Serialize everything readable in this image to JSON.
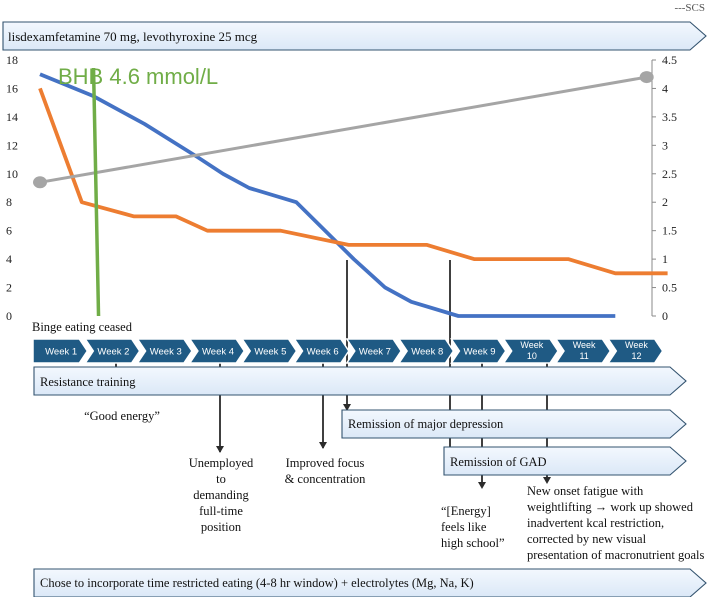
{
  "corner_label": "---SCS",
  "medication_label": "lisdexamfetamine 70 mg, levothyroxine 25 mcg",
  "bhb_label": "BHB 4.6 mmol/L",
  "binge_label": "Binge eating ceased",
  "weeks": [
    "Week 1",
    "Week 2",
    "Week 3",
    "Week 4",
    "Week 5",
    "Week 6",
    "Week 7",
    "Week 8",
    "Week 9",
    "Week 10",
    "Week 11",
    "Week 12"
  ],
  "bands": {
    "resistance": "Resistance training",
    "depression": "Remission of major depression",
    "gad": "Remission of GAD",
    "bottom": "Chose to incorporate time restricted eating (4-8 hr window) + electrolytes (Mg, Na, K)"
  },
  "annotations": [
    {
      "week": 2,
      "lines": [
        "“Good energy”"
      ]
    },
    {
      "week": 4,
      "lines": [
        "Unemployed",
        "to",
        "demanding",
        "full-time",
        "position"
      ]
    },
    {
      "week": 6,
      "lines": [
        "Improved focus",
        "& concentration"
      ]
    },
    {
      "week": 9,
      "lines": [
        "“[Energy]",
        "feels like",
        "high school”"
      ]
    },
    {
      "week": 10,
      "lines": [
        "New onset fatigue with",
        "weightlifting → work up showed",
        "inadvertent kcal restriction,",
        "corrected by new visual",
        "presentation of macronutrient goals"
      ]
    }
  ],
  "chart_data": {
    "type": "line",
    "y_left": {
      "min": 0,
      "max": 18,
      "ticks": [
        "0",
        "2",
        "4",
        "6",
        "8",
        "10",
        "12",
        "14",
        "16",
        "18"
      ]
    },
    "y_right": {
      "min": 0,
      "max": 4.5,
      "ticks": [
        "0",
        "0.5",
        "1",
        "1.5",
        "2",
        "2.5",
        "3",
        "3.5",
        "4",
        "4.5"
      ]
    },
    "x_range": [
      1,
      12
    ],
    "series": [
      {
        "color": "#4472c4",
        "axis": "left",
        "points": [
          [
            1,
            17
          ],
          [
            2,
            15.5
          ],
          [
            3,
            13.5
          ],
          [
            4,
            11.2
          ],
          [
            4.5,
            10
          ],
          [
            5,
            9
          ],
          [
            5.9,
            8
          ],
          [
            7,
            4
          ],
          [
            7.6,
            2
          ],
          [
            8.1,
            1
          ],
          [
            9,
            0
          ],
          [
            10,
            0
          ],
          [
            11,
            0
          ],
          [
            12,
            0
          ]
        ]
      },
      {
        "color": "#ed7d31",
        "axis": "left",
        "points": [
          [
            1,
            16
          ],
          [
            1.8,
            8
          ],
          [
            2.8,
            7
          ],
          [
            3.6,
            7
          ],
          [
            4.2,
            6
          ],
          [
            5.6,
            6
          ],
          [
            6.9,
            5
          ],
          [
            8.4,
            5
          ],
          [
            9.3,
            4
          ],
          [
            10,
            4
          ],
          [
            11.1,
            4
          ],
          [
            12,
            3
          ],
          [
            13,
            3
          ]
        ]
      },
      {
        "color": "#a5a5a5",
        "axis": "right",
        "points": [
          [
            1,
            2.35
          ],
          [
            12.6,
            4.2
          ]
        ]
      }
    ],
    "bhb_marker": {
      "color": "#70ad47",
      "x": 2.1
    }
  }
}
